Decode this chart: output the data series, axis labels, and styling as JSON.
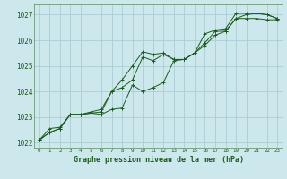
{
  "bg_color": "#cde8ec",
  "grid_color": "#aacdd4",
  "line_color": "#1a5c1a",
  "marker_color": "#1a5c1a",
  "title": "Graphe pression niveau de la mer (hPa)",
  "ylim": [
    1021.8,
    1027.4
  ],
  "xlim": [
    -0.5,
    23.5
  ],
  "yticks": [
    1022,
    1023,
    1024,
    1025,
    1026,
    1027
  ],
  "xticks": [
    0,
    1,
    2,
    3,
    4,
    5,
    6,
    7,
    8,
    9,
    10,
    11,
    12,
    13,
    14,
    15,
    16,
    17,
    18,
    19,
    20,
    21,
    22,
    23
  ],
  "series": [
    [
      1022.1,
      1022.55,
      1022.6,
      1023.1,
      1023.1,
      1023.15,
      1023.2,
      1024.0,
      1024.45,
      1025.0,
      1025.55,
      1025.45,
      1025.5,
      1025.25,
      1025.25,
      1025.5,
      1025.9,
      1026.35,
      1026.35,
      1026.85,
      1026.85,
      1026.85,
      1026.8,
      1026.8
    ],
    [
      1022.1,
      1022.4,
      1022.55,
      1023.1,
      1023.1,
      1023.2,
      1023.3,
      1024.0,
      1024.15,
      1024.45,
      1025.35,
      1025.2,
      1025.45,
      1025.25,
      1025.25,
      1025.5,
      1026.25,
      1026.4,
      1026.45,
      1027.05,
      1027.05,
      1027.05,
      1027.0,
      1026.85
    ],
    [
      1022.1,
      1022.4,
      1022.55,
      1023.1,
      1023.1,
      1023.15,
      1023.1,
      1023.3,
      1023.35,
      1024.25,
      1024.0,
      1024.15,
      1024.35,
      1025.2,
      1025.25,
      1025.5,
      1025.8,
      1026.2,
      1026.35,
      1026.85,
      1027.0,
      1027.05,
      1027.0,
      1026.85
    ]
  ]
}
